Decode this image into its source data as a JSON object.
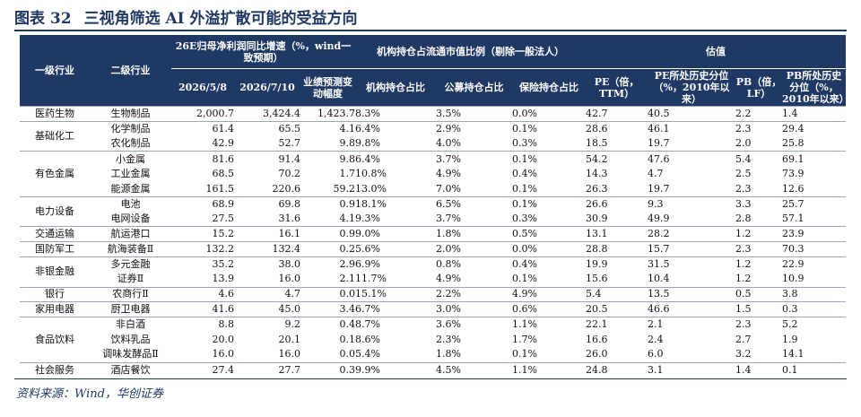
{
  "figure": {
    "label": "图表 32",
    "title": "三视角筛选 AI 外溢扩散可能的受益方向"
  },
  "header": {
    "col_l1": "一级行业",
    "col_l2": "二级行业",
    "group_growth": "26E归母净利润同比增速（%，wind一致预期）",
    "group_holding": "机构持仓占流通市值比例（剔除一般法人）",
    "group_valuation": "估值",
    "sub": [
      "2026/5/8",
      "2026/7/10",
      "业绩预测变动幅度",
      "机构持仓占比",
      "公募持仓占比",
      "保险持仓占比",
      "PE（倍，TTM）",
      "PE所处历史分位（%，2010年以来）",
      "PB（倍，LF）",
      "PB所处历史分位（%，2010年以来）"
    ]
  },
  "groups": [
    {
      "l1": "医药生物",
      "rows": [
        {
          "l2": "生物制品",
          "v": [
            "2,000.7",
            "3,424.4",
            "1,423.7",
            "8.3%",
            "3.5%",
            "0.0%",
            "42.7",
            "40.5",
            "2.2",
            "1.4"
          ]
        }
      ]
    },
    {
      "l1": "基础化工",
      "rows": [
        {
          "l2": "化学制品",
          "v": [
            "61.4",
            "65.5",
            "4.1",
            "6.4%",
            "2.9%",
            "0.1%",
            "28.6",
            "46.1",
            "2.3",
            "29.4"
          ]
        },
        {
          "l2": "农化制品",
          "v": [
            "42.9",
            "52.7",
            "9.8",
            "9.8%",
            "4.0%",
            "0.3%",
            "18.5",
            "19.7",
            "2.0",
            "25.8"
          ]
        }
      ]
    },
    {
      "l1": "有色金属",
      "rows": [
        {
          "l2": "小金属",
          "v": [
            "81.6",
            "91.4",
            "9.8",
            "6.4%",
            "3.7%",
            "0.1%",
            "54.2",
            "47.6",
            "5.4",
            "69.1"
          ]
        },
        {
          "l2": "工业金属",
          "v": [
            "68.5",
            "70.2",
            "1.7",
            "10.8%",
            "4.9%",
            "0.4%",
            "14.3",
            "4.7",
            "2.5",
            "73.9"
          ]
        },
        {
          "l2": "能源金属",
          "v": [
            "161.5",
            "220.6",
            "59.2",
            "13.0%",
            "7.0%",
            "0.1%",
            "26.3",
            "19.7",
            "2.3",
            "12.6"
          ]
        }
      ]
    },
    {
      "l1": "电力设备",
      "rows": [
        {
          "l2": "电池",
          "v": [
            "68.9",
            "69.8",
            "0.9",
            "18.1%",
            "6.5%",
            "0.1%",
            "26.6",
            "9.3",
            "3.3",
            "25.7"
          ]
        },
        {
          "l2": "电网设备",
          "v": [
            "27.5",
            "31.6",
            "4.1",
            "9.3%",
            "3.7%",
            "0.3%",
            "30.9",
            "49.9",
            "2.8",
            "57.1"
          ]
        }
      ]
    },
    {
      "l1": "交通运输",
      "rows": [
        {
          "l2": "航运港口",
          "v": [
            "15.2",
            "16.1",
            "0.9",
            "9.0%",
            "1.8%",
            "0.5%",
            "13.1",
            "28.2",
            "1.2",
            "23.9"
          ]
        }
      ]
    },
    {
      "l1": "国防军工",
      "rows": [
        {
          "l2": "航海装备Ⅱ",
          "v": [
            "132.2",
            "132.4",
            "0.2",
            "5.6%",
            "2.0%",
            "0.0%",
            "28.8",
            "15.7",
            "2.3",
            "70.3"
          ]
        }
      ]
    },
    {
      "l1": "非银金融",
      "rows": [
        {
          "l2": "多元金融",
          "v": [
            "35.2",
            "38.0",
            "2.9",
            "6.9%",
            "0.8%",
            "0.4%",
            "19.9",
            "31.5",
            "1.2",
            "22.9"
          ]
        },
        {
          "l2": "证券Ⅱ",
          "v": [
            "13.9",
            "16.0",
            "2.1",
            "11.7%",
            "4.9%",
            "0.1%",
            "15.6",
            "10.4",
            "1.2",
            "10.9"
          ]
        }
      ]
    },
    {
      "l1": "银行",
      "rows": [
        {
          "l2": "农商行Ⅱ",
          "v": [
            "4.6",
            "4.7",
            "0.0",
            "15.1%",
            "2.2%",
            "4.9%",
            "5.4",
            "13.5",
            "0.5",
            "3.8"
          ]
        }
      ]
    },
    {
      "l1": "家用电器",
      "rows": [
        {
          "l2": "厨卫电器",
          "v": [
            "41.6",
            "45.0",
            "3.4",
            "6.7%",
            "3.0%",
            "0.6%",
            "20.5",
            "46.6",
            "1.5",
            "0.3"
          ]
        }
      ]
    },
    {
      "l1": "食品饮料",
      "rows": [
        {
          "l2": "非白酒",
          "v": [
            "8.8",
            "9.2",
            "0.4",
            "8.7%",
            "3.6%",
            "1.1%",
            "22.1",
            "2.1",
            "2.3",
            "5.2"
          ]
        },
        {
          "l2": "饮料乳品",
          "v": [
            "20.0",
            "20.1",
            "0.1",
            "8.6%",
            "2.3%",
            "1.7%",
            "16.6",
            "2.4",
            "2.7",
            "1.9"
          ]
        },
        {
          "l2": "调味发酵品Ⅱ",
          "v": [
            "16.0",
            "16.0",
            "0.0",
            "5.4%",
            "1.8%",
            "0.1%",
            "26.0",
            "6.0",
            "3.2",
            "14.1"
          ]
        }
      ]
    },
    {
      "l1": "社会服务",
      "rows": [
        {
          "l2": "酒店餐饮",
          "v": [
            "27.4",
            "27.7",
            "0.3",
            "9.9%",
            "4.5%",
            "1.1%",
            "24.8",
            "3.1",
            "1.4",
            "0.1"
          ]
        }
      ]
    }
  ],
  "source": "资料来源：Wind，华创证券",
  "colors": {
    "header_bg": "#1f3864",
    "title": "#1f3864",
    "row_rule": "#9aa7ba"
  }
}
